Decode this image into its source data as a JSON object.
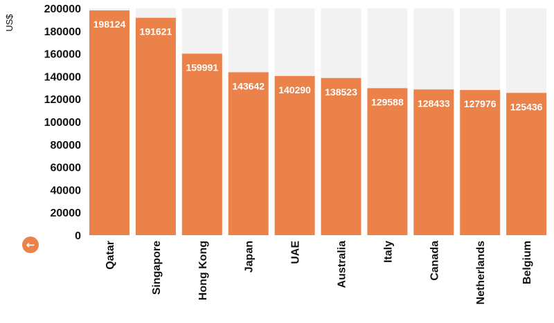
{
  "chart_data": {
    "type": "bar",
    "ylabel": "US$",
    "categories": [
      "Qatar",
      "Singapore",
      "Hong Kong",
      "Japan",
      "UAE",
      "Australia",
      "Italy",
      "Canada",
      "Netherlands",
      "Belgium"
    ],
    "values": [
      198124,
      191621,
      159991,
      143642,
      140290,
      138523,
      129588,
      128433,
      127976,
      125436
    ],
    "ylim": [
      0,
      200000
    ],
    "yticks": [
      0,
      20000,
      40000,
      60000,
      80000,
      100000,
      120000,
      140000,
      160000,
      180000,
      200000
    ],
    "bar_color": "#EB824A",
    "track_color": "#F2F2F2",
    "data_label_color": "#FFFFFF"
  },
  "controls": {
    "back_icon": "arrow-left-icon",
    "back_glyph": "←",
    "back_color": "#EB824A"
  }
}
